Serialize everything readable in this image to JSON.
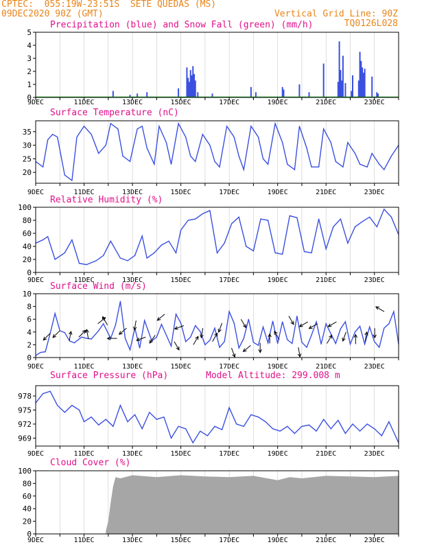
{
  "header": {
    "line1_left": "CPTEC:  055:19W-23:51S  SETE QUEDAS (MS)",
    "line2_left": "09DEC2020 90Z (GMT)",
    "line2_right": "Vertical Grid Line: 90Z",
    "line3_right": "TQ0126L028"
  },
  "colors": {
    "series": "#3a4fe0",
    "snow": "#1a9a1a",
    "cloud": "#a6a6a6",
    "title": "#e0108a",
    "header": "#e8841a"
  },
  "x_tick_labels": [
    "9DEC",
    "11DEC",
    "13DEC",
    "15DEC",
    "17DEC",
    "19DEC",
    "21DEC",
    "23DEC"
  ],
  "chart_data": [
    {
      "type": "bar",
      "title": "Precipitation (blue) and Snow Fall (green) (mm/h)",
      "x_range_days": [
        9,
        24
      ],
      "ylim": [
        0,
        5
      ],
      "yticks": [
        0,
        1,
        2,
        3,
        4,
        5
      ],
      "series": [
        {
          "name": "Precipitation",
          "x": [
            12.2,
            12.9,
            13.2,
            13.6,
            14.9,
            15.25,
            15.3,
            15.35,
            15.4,
            15.45,
            15.5,
            15.55,
            15.6,
            15.7,
            16.3,
            17.9,
            18.1,
            19.2,
            19.25,
            19.9,
            20.3,
            20.9,
            21.5,
            21.55,
            21.6,
            21.65,
            21.7,
            21.8,
            22.05,
            22.1,
            22.35,
            22.4,
            22.45,
            22.5,
            22.55,
            22.6,
            22.9,
            23.1,
            23.15
          ],
          "values": [
            0.5,
            0.2,
            0.3,
            0.4,
            0.7,
            2.3,
            1.5,
            1.2,
            2.1,
            1.7,
            2.4,
            1.8,
            1.3,
            0.4,
            0.3,
            0.8,
            0.4,
            0.8,
            0.6,
            1.0,
            0.4,
            2.6,
            1.2,
            4.3,
            2.1,
            1.3,
            3.2,
            1.1,
            0.5,
            1.7,
            1.3,
            3.5,
            2.8,
            2.3,
            1.9,
            2.2,
            1.6,
            0.4,
            0.3
          ]
        },
        {
          "name": "Snow Fall",
          "x": [],
          "values": []
        }
      ]
    },
    {
      "type": "line",
      "title": "Surface Temperature (nC)",
      "x_range_days": [
        9,
        24
      ],
      "ylim": [
        16,
        39
      ],
      "yticks": [
        20,
        25,
        30,
        35
      ],
      "series": [
        {
          "name": "Surface Temperature",
          "x": [
            9.0,
            9.3,
            9.5,
            9.7,
            9.9,
            10.2,
            10.5,
            10.7,
            11.0,
            11.3,
            11.6,
            11.9,
            12.1,
            12.4,
            12.6,
            12.9,
            13.2,
            13.4,
            13.6,
            13.9,
            14.1,
            14.4,
            14.6,
            14.9,
            15.2,
            15.4,
            15.6,
            15.9,
            16.2,
            16.4,
            16.6,
            16.9,
            17.2,
            17.4,
            17.6,
            17.9,
            18.2,
            18.4,
            18.6,
            18.9,
            19.2,
            19.4,
            19.7,
            19.9,
            20.2,
            20.4,
            20.7,
            20.9,
            21.2,
            21.4,
            21.7,
            21.9,
            22.2,
            22.4,
            22.7,
            22.9,
            23.2,
            23.4,
            23.7,
            24.0
          ],
          "values": [
            24,
            22,
            32,
            34,
            33,
            19,
            17,
            33,
            37,
            34,
            27,
            30,
            38,
            36,
            26,
            24,
            36,
            37,
            29,
            23,
            37,
            31,
            23,
            38,
            33,
            26,
            24,
            34,
            30,
            24,
            22,
            37,
            33,
            26,
            21,
            37,
            33,
            25,
            23,
            38,
            31,
            23,
            21,
            37,
            29,
            22,
            22,
            36,
            31,
            24,
            22,
            31,
            27,
            23,
            22,
            27,
            23,
            21,
            26,
            30
          ]
        }
      ]
    },
    {
      "type": "line",
      "title": "Relative Humidity (%)",
      "x_range_days": [
        9,
        24
      ],
      "ylim": [
        0,
        100
      ],
      "yticks": [
        0,
        20,
        40,
        60,
        80,
        100
      ],
      "series": [
        {
          "name": "Relative Humidity",
          "x": [
            9.0,
            9.3,
            9.5,
            9.8,
            10.2,
            10.5,
            10.8,
            11.1,
            11.5,
            11.8,
            12.1,
            12.5,
            12.8,
            13.1,
            13.4,
            13.6,
            13.9,
            14.2,
            14.5,
            14.8,
            15.0,
            15.3,
            15.6,
            15.9,
            16.2,
            16.5,
            16.8,
            17.1,
            17.4,
            17.7,
            18.0,
            18.3,
            18.6,
            18.9,
            19.2,
            19.5,
            19.8,
            20.1,
            20.4,
            20.7,
            21.0,
            21.3,
            21.6,
            21.9,
            22.2,
            22.5,
            22.8,
            23.1,
            23.4,
            23.7,
            24.0
          ],
          "values": [
            45,
            50,
            55,
            20,
            30,
            50,
            14,
            12,
            18,
            26,
            48,
            22,
            18,
            26,
            56,
            22,
            30,
            42,
            48,
            30,
            65,
            80,
            82,
            90,
            95,
            30,
            45,
            75,
            85,
            40,
            33,
            82,
            80,
            30,
            28,
            87,
            84,
            32,
            30,
            82,
            36,
            70,
            82,
            45,
            70,
            78,
            85,
            70,
            97,
            85,
            58
          ]
        }
      ]
    },
    {
      "type": "line",
      "title": "Surface Wind (m/s)",
      "x_range_days": [
        9,
        24
      ],
      "ylim": [
        0,
        10
      ],
      "yticks": [
        0,
        2,
        4,
        6,
        8,
        10
      ],
      "series": [
        {
          "name": "Surface Wind",
          "x": [
            9.0,
            9.2,
            9.4,
            9.6,
            9.8,
            10.0,
            10.2,
            10.4,
            10.6,
            10.9,
            11.1,
            11.3,
            11.6,
            11.8,
            12.1,
            12.3,
            12.5,
            12.7,
            12.9,
            13.1,
            13.3,
            13.5,
            13.8,
            14.0,
            14.2,
            14.4,
            14.6,
            14.8,
            15.0,
            15.2,
            15.4,
            15.6,
            15.8,
            16.0,
            16.2,
            16.4,
            16.6,
            16.8,
            17.0,
            17.2,
            17.4,
            17.6,
            17.8,
            18.0,
            18.2,
            18.4,
            18.6,
            18.8,
            19.0,
            19.2,
            19.4,
            19.6,
            19.8,
            20.0,
            20.2,
            20.4,
            20.6,
            20.8,
            21.0,
            21.2,
            21.4,
            21.6,
            21.8,
            22.0,
            22.2,
            22.4,
            22.6,
            22.8,
            23.0,
            23.2,
            23.4,
            23.6,
            23.8,
            24.0
          ],
          "values": [
            0.3,
            0.8,
            0.9,
            3.8,
            6.9,
            4.2,
            3.9,
            2.6,
            2.3,
            3.2,
            3.0,
            2.9,
            4.2,
            5.3,
            3.0,
            5.1,
            8.8,
            3.0,
            1.2,
            4.6,
            1.5,
            5.8,
            2.6,
            3.2,
            5.2,
            3.5,
            1.8,
            6.8,
            5.4,
            2.5,
            3.2,
            5.0,
            4.1,
            2.0,
            2.7,
            4.6,
            1.6,
            2.5,
            7.2,
            5.4,
            1.5,
            3.0,
            6.0,
            2.4,
            1.9,
            4.8,
            2.3,
            5.7,
            2.2,
            5.6,
            2.8,
            2.2,
            6.5,
            2.4,
            1.6,
            3.5,
            5.6,
            2.1,
            5.3,
            3.7,
            2.2,
            4.5,
            5.6,
            2.1,
            4.0,
            4.9,
            2.1,
            4.8,
            2.5,
            1.6,
            4.6,
            5.3,
            7.2,
            2.1
          ]
        }
      ],
      "wind_arrows_deg": [
        225,
        225,
        80,
        45,
        100,
        40,
        120,
        180,
        220,
        260,
        200,
        235,
        220,
        300,
        200,
        60,
        260,
        60,
        250,
        290,
        300,
        220,
        270,
        90,
        120,
        300,
        280,
        210,
        210,
        60,
        210,
        250,
        90,
        80,
        270,
        150
      ]
    },
    {
      "type": "line",
      "title": "Surface Pressure (hPa)",
      "annotation": "Model Altitude: 299.008 m",
      "x_range_days": [
        9,
        24
      ],
      "ylim": [
        967.3,
        980.2
      ],
      "ytick_values": [
        969,
        972,
        975,
        978
      ],
      "ytick_labels": [
        "969",
        "972",
        "975",
        "978"
      ],
      "series": [
        {
          "name": "Surface Pressure",
          "x": [
            9.0,
            9.3,
            9.6,
            9.9,
            10.2,
            10.5,
            10.8,
            11.0,
            11.3,
            11.6,
            11.9,
            12.2,
            12.5,
            12.8,
            13.1,
            13.4,
            13.7,
            14.0,
            14.3,
            14.6,
            14.9,
            15.2,
            15.5,
            15.8,
            16.1,
            16.4,
            16.7,
            17.0,
            17.3,
            17.6,
            17.9,
            18.2,
            18.5,
            18.8,
            19.1,
            19.4,
            19.7,
            20.0,
            20.3,
            20.6,
            20.9,
            21.2,
            21.5,
            21.8,
            22.1,
            22.4,
            22.7,
            23.0,
            23.3,
            23.6,
            24.0
          ],
          "values": [
            976.5,
            978.5,
            979.0,
            976.0,
            974.5,
            976.0,
            975.0,
            972.5,
            973.5,
            971.8,
            973.0,
            971.5,
            976.0,
            972.5,
            974.0,
            971.0,
            974.5,
            973.0,
            973.5,
            969.0,
            971.5,
            971.0,
            968.0,
            970.5,
            969.5,
            971.5,
            970.8,
            975.5,
            972.0,
            971.5,
            974.0,
            973.5,
            972.5,
            971.0,
            970.5,
            971.5,
            970.0,
            971.5,
            971.8,
            970.5,
            973.0,
            971.0,
            972.8,
            970.0,
            972.0,
            970.5,
            972.0,
            971.0,
            969.5,
            972.5,
            968.0
          ]
        }
      ]
    },
    {
      "type": "bar",
      "title": "Cloud Cover (%)",
      "x_range_days": [
        9,
        24
      ],
      "ylim": [
        0,
        100
      ],
      "yticks": [
        0,
        20,
        40,
        60,
        80,
        100
      ],
      "series": [
        {
          "name": "Cloud Cover",
          "x": [
            11.9,
            12.0,
            12.1,
            12.2,
            12.3,
            12.5,
            13.0,
            14.0,
            15.0,
            16.0,
            17.0,
            18.0,
            19.0,
            19.5,
            20.0,
            21.0,
            22.0,
            23.0,
            24.0
          ],
          "values": [
            5,
            20,
            50,
            75,
            90,
            88,
            93,
            90,
            93,
            91,
            90,
            92,
            85,
            90,
            88,
            92,
            91,
            90,
            92
          ]
        }
      ]
    }
  ]
}
